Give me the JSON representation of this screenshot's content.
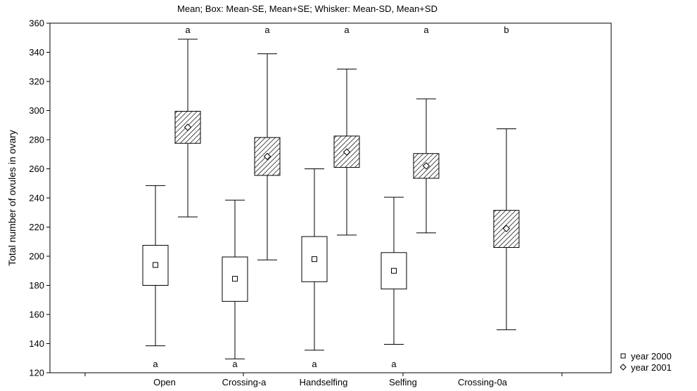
{
  "chart_data": {
    "type": "box",
    "title": "Mean;  Box: Mean-SE, Mean+SE;  Whisker: Mean-SD, Mean+SD",
    "xlabel": "",
    "ylabel": "Total number of ovules in ovary",
    "ylim": [
      120,
      360
    ],
    "yticks": [
      120,
      140,
      160,
      180,
      200,
      220,
      240,
      260,
      280,
      300,
      320,
      340,
      360
    ],
    "grid": false,
    "legend_position": "bottom-right",
    "categories": [
      "Open",
      "Crossing-a",
      "Handselfing",
      "Selfing",
      "Crossing-0a"
    ],
    "series": [
      {
        "name": "year 2000",
        "marker": "square",
        "box_fill": "#ffffff",
        "values": [
          {
            "mean": 194,
            "se_low": 180,
            "se_high": 207.5,
            "sd_low": 138.5,
            "sd_high": 248.5
          },
          {
            "mean": 184.5,
            "se_low": 169,
            "se_high": 199.5,
            "sd_low": 129.5,
            "sd_high": 238.5
          },
          {
            "mean": 198,
            "se_low": 182.5,
            "se_high": 213.5,
            "sd_low": 135.5,
            "sd_high": 260
          },
          {
            "mean": 190,
            "se_low": 177.5,
            "se_high": 202.5,
            "sd_low": 139.5,
            "sd_high": 240.5
          },
          null
        ],
        "significance": [
          "a",
          "a",
          "a",
          "a",
          ""
        ]
      },
      {
        "name": "year 2001",
        "marker": "diamond",
        "box_fill": "hatched",
        "values": [
          {
            "mean": 288.5,
            "se_low": 277.5,
            "se_high": 299.5,
            "sd_low": 227,
            "sd_high": 349
          },
          {
            "mean": 268.5,
            "se_low": 255.5,
            "se_high": 281.5,
            "sd_low": 197.5,
            "sd_high": 339
          },
          {
            "mean": 271.5,
            "se_low": 261,
            "se_high": 282.5,
            "sd_low": 214.5,
            "sd_high": 328.5
          },
          {
            "mean": 262,
            "se_low": 253.5,
            "se_high": 270.5,
            "sd_low": 216,
            "sd_high": 308
          },
          {
            "mean": 219,
            "se_low": 206,
            "se_high": 231.5,
            "sd_low": 149.5,
            "sd_high": 287.5
          }
        ],
        "significance": [
          "a",
          "a",
          "a",
          "a",
          "b"
        ]
      }
    ]
  }
}
